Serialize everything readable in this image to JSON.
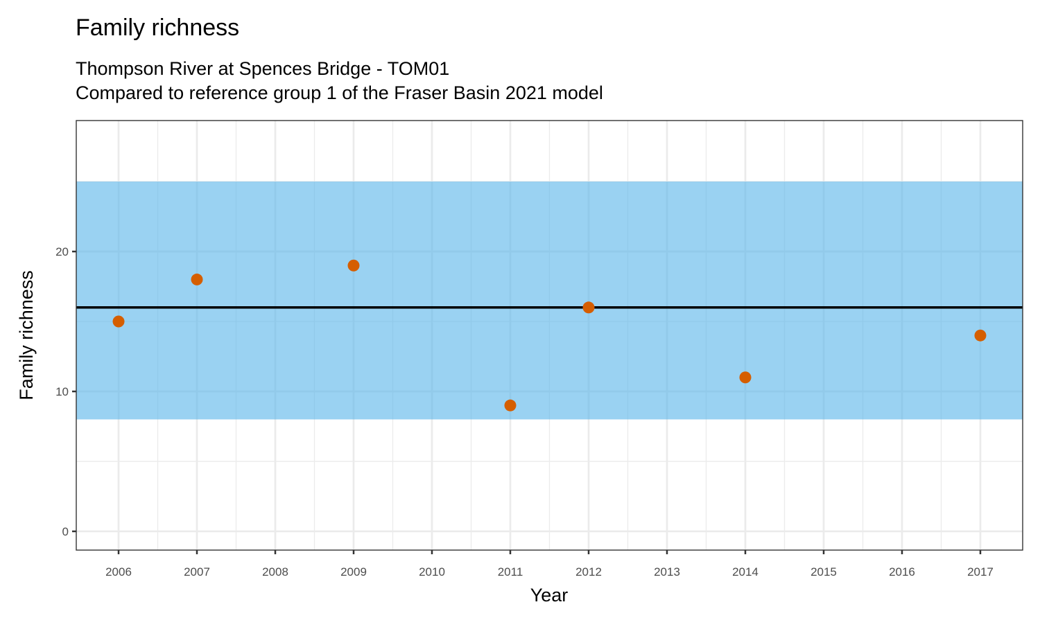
{
  "chart_data": {
    "type": "scatter",
    "title": "Family richness",
    "subtitle_lines": [
      "Thompson River at Spences Bridge - TOM01",
      "Compared to reference group 1 of the Fraser Basin 2021 model"
    ],
    "xlabel": "Year",
    "ylabel": "Family richness",
    "xlim": [
      2005.46,
      2017.54
    ],
    "ylim": [
      -1.34,
      29.36
    ],
    "x_ticks": [
      2006,
      2007,
      2008,
      2009,
      2010,
      2011,
      2012,
      2013,
      2014,
      2015,
      2016,
      2017
    ],
    "y_ticks": [
      0,
      10,
      20
    ],
    "grid": true,
    "reference_band": {
      "low": 8,
      "high": 25,
      "color": "#56B4E9"
    },
    "reference_line": {
      "value": 16,
      "color": "#000000"
    },
    "points": {
      "x": [
        2006,
        2007,
        2009,
        2011,
        2012,
        2014,
        2017
      ],
      "y": [
        15,
        18,
        19,
        9,
        16,
        11,
        14
      ],
      "color": "#D55E00"
    }
  }
}
